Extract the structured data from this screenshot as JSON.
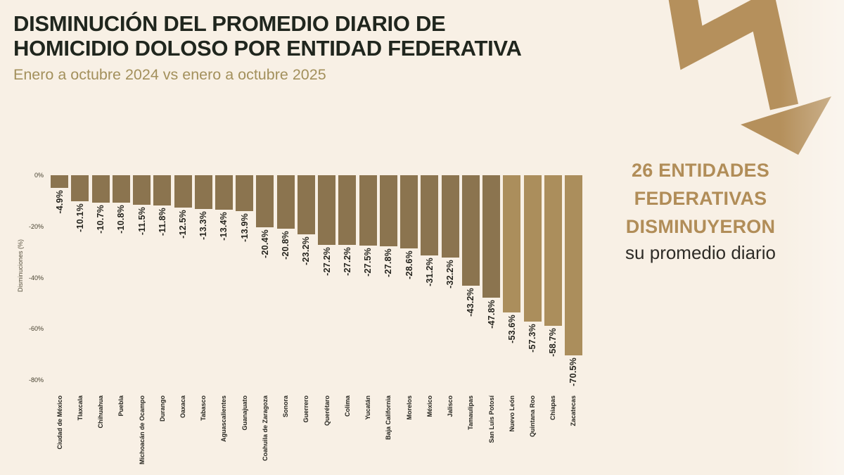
{
  "header": {
    "title_line1": "DISMINUCIÓN DEL PROMEDIO DIARIO DE",
    "title_line2": "HOMICIDIO DOLOSO POR ENTIDAD FEDERATIVA",
    "subtitle": "Enero a octubre 2024 vs enero a octubre 2025"
  },
  "callout": {
    "line1": "26 ENTIDADES",
    "line2": "FEDERATIVAS",
    "line3": "DISMINUYERON",
    "subline": "su promedio diario"
  },
  "icons": {
    "trend_arrow": "downward-zigzag-arrow"
  },
  "colors": {
    "background": "#f8f0e5",
    "title_dark": "#20261e",
    "subtitle_olive": "#a3905c",
    "bar_primary": "#8b744f",
    "bar_highlight": "#ab8e5c",
    "accent_gold": "#b18d58",
    "arrow_gold": "#b5905c"
  },
  "chart_data": {
    "type": "bar",
    "title": "Disminución del promedio diario de homicidio doloso por entidad federativa",
    "xlabel": "",
    "ylabel": "Disminuciones (%)",
    "ylim": [
      -80,
      0
    ],
    "yticks": [
      "0%",
      "-20%",
      "-40%",
      "-60%",
      "-80%"
    ],
    "grid": false,
    "legend": false,
    "bar_value_labels_rotated": true,
    "categories": [
      "Ciudad de México",
      "Tlaxcala",
      "Chihuahua",
      "Puebla",
      "Michoacán de Ocampo",
      "Durango",
      "Oaxaca",
      "Tabasco",
      "Aguascalientes",
      "Guanajuato",
      "Coahuila de Zaragoza",
      "Sonora",
      "Guerrero",
      "Querétaro",
      "Colima",
      "Yucatán",
      "Baja California",
      "Morelos",
      "México",
      "Jalisco",
      "Tamaulipas",
      "San Luis Potosí",
      "Nuevo León",
      "Quintana Roo",
      "Chiapas",
      "Zacatecas"
    ],
    "values": [
      -4.9,
      -10.1,
      -10.7,
      -10.8,
      -11.5,
      -11.8,
      -12.5,
      -13.3,
      -13.4,
      -13.9,
      -20.4,
      -20.8,
      -23.2,
      -27.2,
      -27.2,
      -27.5,
      -27.8,
      -28.6,
      -31.2,
      -32.2,
      -43.2,
      -47.8,
      -53.6,
      -57.3,
      -58.7,
      -70.5
    ],
    "value_labels": [
      "-4.9%",
      "-10.1%",
      "-10.7%",
      "-10.8%",
      "-11.5%",
      "-11.8%",
      "-12.5%",
      "-13.3%",
      "-13.4%",
      "-13.9%",
      "-20.4%",
      "-20.8%",
      "-23.2%",
      "-27.2%",
      "-27.2%",
      "-27.5%",
      "-27.8%",
      "-28.6%",
      "-31.2%",
      "-32.2%",
      "-43.2%",
      "-47.8%",
      "-53.6%",
      "-57.3%",
      "-58.7%",
      "-70.5%"
    ],
    "highlight_indices": [
      22,
      23,
      24,
      25
    ]
  }
}
